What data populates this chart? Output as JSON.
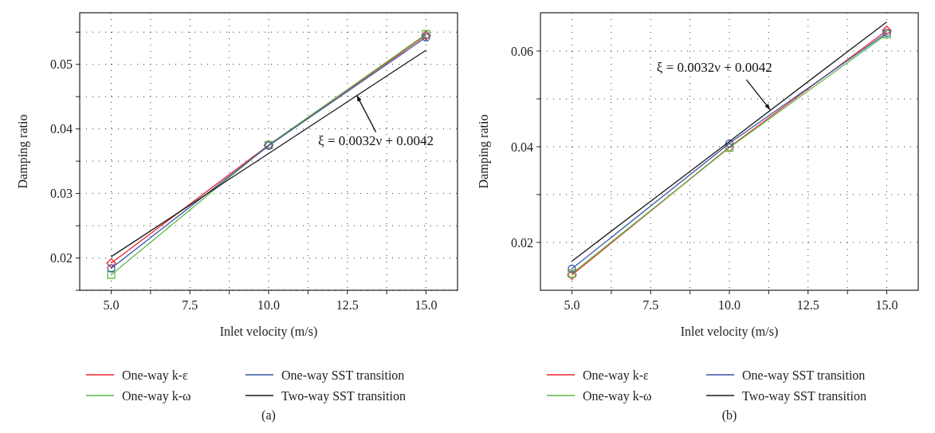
{
  "chart_data": [
    {
      "type": "line",
      "xlabel": "Inlet velocity (m/s)",
      "ylabel": "Damping ratio",
      "x": [
        5,
        10,
        15
      ],
      "series": [
        {
          "name": "One-way k-ε",
          "color": "#e8262b",
          "marker": "diamond",
          "values": [
            0.0192,
            0.0375,
            0.0545
          ]
        },
        {
          "name": "One-way k-ω",
          "color": "#5bb947",
          "marker": "square",
          "values": [
            0.0174,
            0.0375,
            0.0547
          ]
        },
        {
          "name": "One-way SST transition",
          "color": "#3a55a6",
          "marker": "circle",
          "values": [
            0.0184,
            0.0374,
            0.0542
          ]
        },
        {
          "name": "Two-way SST transition",
          "color": "#1a1a1a",
          "marker": "none",
          "values": [
            0.0202,
            0.0362,
            0.0522
          ]
        }
      ],
      "xlim": [
        4,
        16
      ],
      "xticks": [
        {
          "value": 5,
          "label": "5.0"
        },
        {
          "value": 6.25,
          "label": null
        },
        {
          "value": 7.5,
          "label": "7.5"
        },
        {
          "value": 8.75,
          "label": null
        },
        {
          "value": 10,
          "label": "10.0"
        },
        {
          "value": 11.25,
          "label": null
        },
        {
          "value": 12.5,
          "label": "12.5"
        },
        {
          "value": 13.75,
          "label": null
        },
        {
          "value": 15,
          "label": "15.0"
        }
      ],
      "ylim": [
        0.015,
        0.058
      ],
      "yticks": [
        {
          "value": 0.015,
          "label": null
        },
        0.02,
        {
          "value": 0.025,
          "label": null
        },
        0.03,
        {
          "value": 0.035,
          "label": null
        },
        0.04,
        {
          "value": 0.045,
          "label": null
        },
        0.05,
        {
          "value": 0.055,
          "label": null
        }
      ],
      "grid": true,
      "legend": "bottom",
      "annotations": [
        {
          "text": "ξ = 0.0032ν + 0.0042",
          "x": 12.8,
          "y": 0.0452
        },
        "(a)"
      ]
    },
    {
      "type": "line",
      "xlabel": "Inlet velocity (m/s)",
      "ylabel": "Damping ratio",
      "x": [
        5,
        10,
        15
      ],
      "series": [
        {
          "name": "One-way k-ε",
          "color": "#e8262b",
          "marker": "diamond",
          "values": [
            0.0132,
            0.0399,
            0.0643
          ]
        },
        {
          "name": "One-way k-ω",
          "color": "#5bb947",
          "marker": "square",
          "values": [
            0.0135,
            0.0398,
            0.0635
          ]
        },
        {
          "name": "One-way SST transition",
          "color": "#3a55a6",
          "marker": "circle",
          "values": [
            0.0145,
            0.0407,
            0.0638
          ]
        },
        {
          "name": "Two-way SST transition",
          "color": "#1a1a1a",
          "marker": "none",
          "values": [
            0.0161,
            0.0411,
            0.0661
          ]
        }
      ],
      "xlim": [
        4,
        16
      ],
      "xticks": [
        {
          "value": 5,
          "label": "5.0"
        },
        {
          "value": 6.25,
          "label": null
        },
        {
          "value": 7.5,
          "label": "7.5"
        },
        {
          "value": 8.75,
          "label": null
        },
        {
          "value": 10,
          "label": "10.0"
        },
        {
          "value": 11.25,
          "label": null
        },
        {
          "value": 12.5,
          "label": "12.5"
        },
        {
          "value": 13.75,
          "label": null
        },
        {
          "value": 15,
          "label": "15.0"
        }
      ],
      "ylim": [
        0.01,
        0.068
      ],
      "yticks": [
        0.02,
        {
          "value": 0.03,
          "label": null
        },
        0.04,
        {
          "value": 0.05,
          "label": null
        },
        0.06
      ],
      "grid": true,
      "legend": "bottom",
      "annotations": [
        {
          "text": "ξ = 0.0032ν + 0.0042",
          "x": 11.3,
          "y": 0.0477
        },
        "(b)"
      ]
    }
  ]
}
